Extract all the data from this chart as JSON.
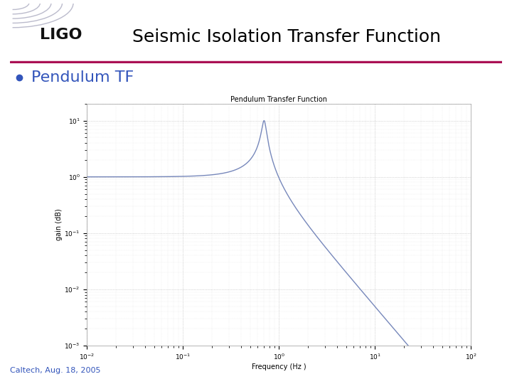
{
  "title": "Seismic Isolation Transfer Function",
  "slide_title_fontsize": 18,
  "slide_title_color": "#000000",
  "bullet_text": "Pendulum TF",
  "bullet_color": "#3355bb",
  "bullet_fontsize": 16,
  "plot_title": "Pendulum Transfer Function",
  "plot_title_fontsize": 7,
  "xlabel": "Frequency (Hz )",
  "ylabel": "gain (dB)",
  "xlabel_fontsize": 7,
  "ylabel_fontsize": 7,
  "line_color": "#7788bb",
  "line_width": 1.0,
  "f0": 0.7,
  "Q": 10,
  "f_min": 0.01,
  "f_max": 100,
  "y_min": 0.001,
  "y_max": 20,
  "footer_text": "Caltech, Aug. 18, 2005",
  "footer_color": "#3355bb",
  "footer_fontsize": 8,
  "background_color": "#ffffff",
  "divider_color": "#aa1155",
  "ligo_text": "LIGO",
  "ligo_fontsize": 16,
  "arc_color": "#bbbbcc",
  "tick_fontsize": 6.5,
  "grid_major_color": "#aaaaaa",
  "grid_minor_color": "#cccccc"
}
